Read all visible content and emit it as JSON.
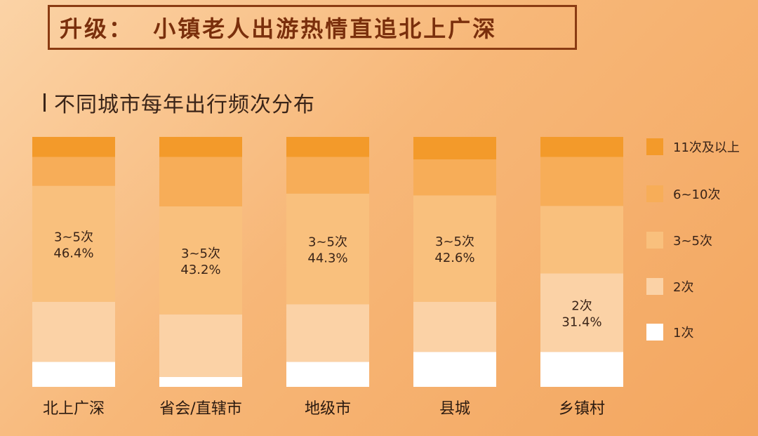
{
  "header": {
    "title": "升级：  小镇老人出游热情直追北上广深"
  },
  "colors": {
    "11次及以上": "#f39a2a",
    "6~10次": "#f7ad58",
    "3~5次": "#f9c07d",
    "2次": "#fbd2a6",
    "1次": "#ffffff"
  },
  "chart_data": {
    "type": "bar",
    "stacked": true,
    "normalized": true,
    "title": "不同城市每年出行频次分布",
    "xlabel": "",
    "ylabel": "",
    "ylim": [
      0,
      100
    ],
    "categories": [
      "北上广深",
      "省会/直辖市",
      "地级市",
      "县城",
      "乡镇村"
    ],
    "series": [
      {
        "name": "1次",
        "values": [
          10.0,
          4.0,
          10.0,
          14.0,
          14.0
        ]
      },
      {
        "name": "2次",
        "values": [
          24.0,
          25.0,
          23.0,
          20.0,
          31.4
        ]
      },
      {
        "name": "3~5次",
        "values": [
          46.4,
          43.2,
          44.3,
          42.6,
          27.0
        ]
      },
      {
        "name": "6~10次",
        "values": [
          11.6,
          19.8,
          14.7,
          14.4,
          19.6
        ]
      },
      {
        "name": "11次及以上",
        "values": [
          8.0,
          8.0,
          8.0,
          9.0,
          8.0
        ]
      }
    ],
    "data_labels": [
      {
        "category": "北上广深",
        "series": "3~5次",
        "line1": "3~5次",
        "line2": "46.4%"
      },
      {
        "category": "省会/直辖市",
        "series": "3~5次",
        "line1": "3~5次",
        "line2": "43.2%"
      },
      {
        "category": "地级市",
        "series": "3~5次",
        "line1": "3~5次",
        "line2": "44.3%"
      },
      {
        "category": "县城",
        "series": "3~5次",
        "line1": "3~5次",
        "line2": "42.6%"
      },
      {
        "category": "乡镇村",
        "series": "2次",
        "line1": "2次",
        "line2": "31.4%"
      }
    ],
    "legend": {
      "position": "right",
      "items": [
        "11次及以上",
        "6~10次",
        "3~5次",
        "2次",
        "1次"
      ]
    }
  }
}
